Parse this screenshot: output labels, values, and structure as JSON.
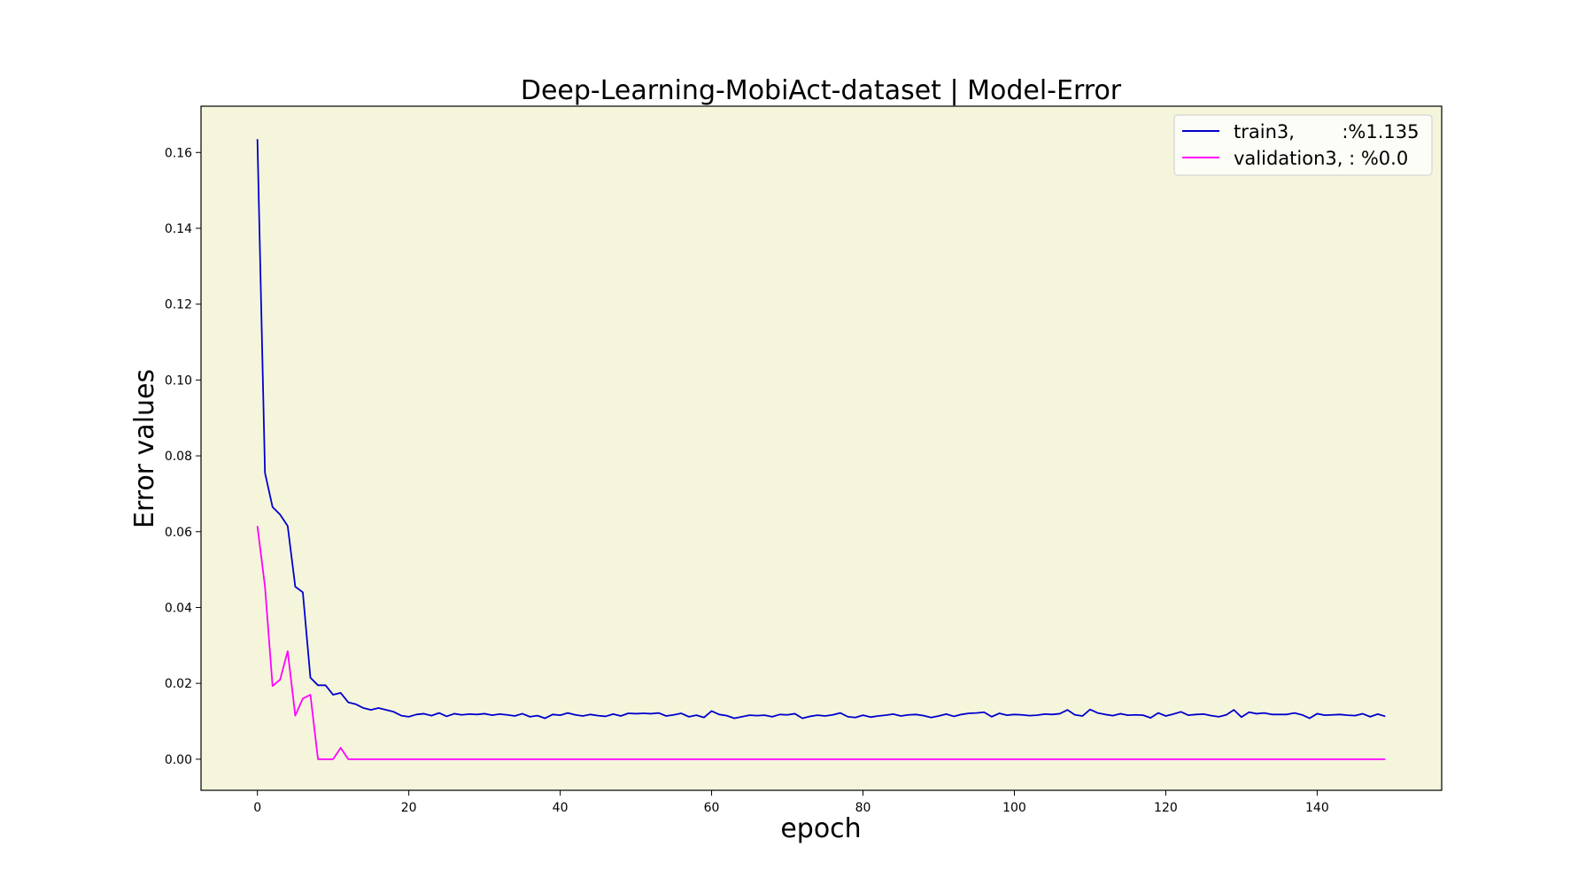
{
  "chart_data": {
    "type": "line",
    "title": "Deep-Learning-MobiAct-dataset  | Model-Error",
    "xlabel": "epoch",
    "ylabel": "Error values",
    "xlim": [
      -7.45,
      156.45
    ],
    "ylim": [
      -0.0082,
      0.1722
    ],
    "xticks": [
      0,
      20,
      40,
      60,
      80,
      100,
      120,
      140
    ],
    "yticks": [
      0.0,
      0.02,
      0.04,
      0.06,
      0.08,
      0.1,
      0.12,
      0.14,
      0.16
    ],
    "grid": false,
    "legend": "top-right",
    "background_color": "#f5f5dc",
    "series": [
      {
        "name": "train3,        :%1.135",
        "color": "#0000cd",
        "values": [
          0.1635,
          0.0755,
          0.0665,
          0.0645,
          0.0615,
          0.0455,
          0.044,
          0.0215,
          0.0195,
          0.0195,
          0.017,
          0.0175,
          0.015,
          0.0145,
          0.0135,
          0.013,
          0.0135,
          0.013,
          0.0125,
          0.0115,
          0.0112,
          0.0118,
          0.012,
          0.0115,
          0.0122,
          0.0113,
          0.012,
          0.0117,
          0.0119,
          0.0118,
          0.012,
          0.0116,
          0.0119,
          0.0117,
          0.0114,
          0.012,
          0.0112,
          0.0115,
          0.0108,
          0.0118,
          0.0116,
          0.0122,
          0.0117,
          0.0114,
          0.0118,
          0.0115,
          0.0113,
          0.0119,
          0.0114,
          0.0121,
          0.012,
          0.0121,
          0.012,
          0.0122,
          0.0114,
          0.0117,
          0.0121,
          0.0112,
          0.0116,
          0.011,
          0.0127,
          0.0118,
          0.0115,
          0.0108,
          0.0112,
          0.0116,
          0.0115,
          0.0116,
          0.0112,
          0.0118,
          0.0117,
          0.012,
          0.0108,
          0.0113,
          0.0116,
          0.0114,
          0.0117,
          0.0122,
          0.0112,
          0.011,
          0.0116,
          0.0111,
          0.0114,
          0.0116,
          0.0119,
          0.0114,
          0.0117,
          0.0118,
          0.0115,
          0.011,
          0.0114,
          0.0119,
          0.0113,
          0.0118,
          0.0121,
          0.0122,
          0.0124,
          0.0112,
          0.0121,
          0.0116,
          0.0118,
          0.0117,
          0.0115,
          0.0116,
          0.0119,
          0.0118,
          0.012,
          0.013,
          0.0117,
          0.0114,
          0.0131,
          0.0122,
          0.0118,
          0.0115,
          0.012,
          0.0116,
          0.0117,
          0.0116,
          0.0109,
          0.0122,
          0.0114,
          0.0119,
          0.0125,
          0.0116,
          0.0118,
          0.0119,
          0.0115,
          0.0112,
          0.0117,
          0.013,
          0.0111,
          0.0124,
          0.012,
          0.0122,
          0.0118,
          0.0118,
          0.0118,
          0.0122,
          0.0117,
          0.0108,
          0.012,
          0.0116,
          0.0117,
          0.0118,
          0.0116,
          0.0115,
          0.012,
          0.0112,
          0.0119,
          0.0113
        ]
      },
      {
        "name": "validation3, : %0.0",
        "color": "#ff00ff",
        "values": [
          0.0615,
          0.0455,
          0.0193,
          0.021,
          0.0285,
          0.0115,
          0.016,
          0.017,
          0.0,
          0.0,
          0.0,
          0.003,
          0.0,
          0.0,
          0.0,
          0.0,
          0.0,
          0.0,
          0.0,
          0.0,
          0.0,
          0.0,
          0.0,
          0.0,
          0.0,
          0.0,
          0.0,
          0.0,
          0.0,
          0.0,
          0.0,
          0.0,
          0.0,
          0.0,
          0.0,
          0.0,
          0.0,
          0.0,
          0.0,
          0.0,
          0.0,
          0.0,
          0.0,
          0.0,
          0.0,
          0.0,
          0.0,
          0.0,
          0.0,
          0.0,
          0.0,
          0.0,
          0.0,
          0.0,
          0.0,
          0.0,
          0.0,
          0.0,
          0.0,
          0.0,
          0.0,
          0.0,
          0.0,
          0.0,
          0.0,
          0.0,
          0.0,
          0.0,
          0.0,
          0.0,
          0.0,
          0.0,
          0.0,
          0.0,
          0.0,
          0.0,
          0.0,
          0.0,
          0.0,
          0.0,
          0.0,
          0.0,
          0.0,
          0.0,
          0.0,
          0.0,
          0.0,
          0.0,
          0.0,
          0.0,
          0.0,
          0.0,
          0.0,
          0.0,
          0.0,
          0.0,
          0.0,
          0.0,
          0.0,
          0.0,
          0.0,
          0.0,
          0.0,
          0.0,
          0.0,
          0.0,
          0.0,
          0.0,
          0.0,
          0.0,
          0.0,
          0.0,
          0.0,
          0.0,
          0.0,
          0.0,
          0.0,
          0.0,
          0.0,
          0.0,
          0.0,
          0.0,
          0.0,
          0.0,
          0.0,
          0.0,
          0.0,
          0.0,
          0.0,
          0.0,
          0.0,
          0.0,
          0.0,
          0.0,
          0.0,
          0.0,
          0.0,
          0.0,
          0.0,
          0.0,
          0.0,
          0.0,
          0.0,
          0.0,
          0.0,
          0.0,
          0.0,
          0.0,
          0.0,
          0.0
        ]
      }
    ]
  }
}
